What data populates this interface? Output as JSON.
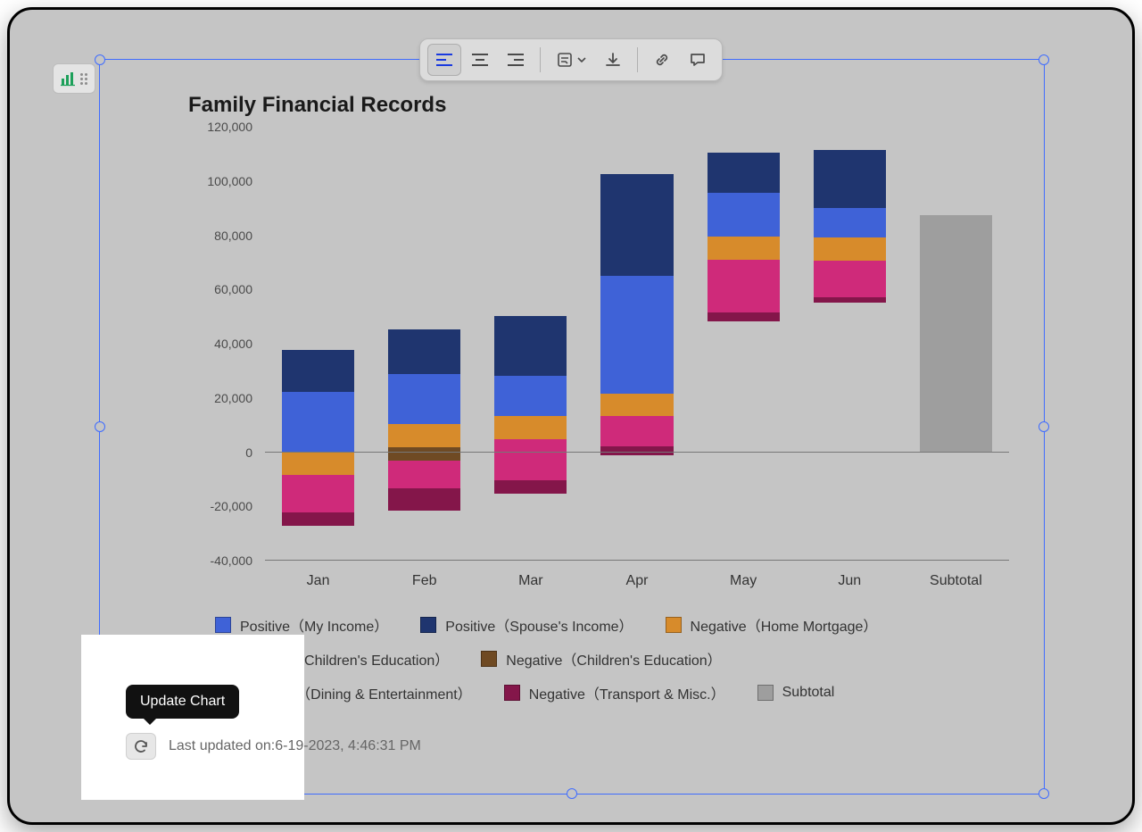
{
  "toolbar": {
    "items": [
      {
        "name": "align-left",
        "active": true
      },
      {
        "name": "align-center",
        "active": false
      },
      {
        "name": "align-right",
        "active": false
      },
      {
        "name": "wrap-settings",
        "active": false,
        "dropdown": true
      },
      {
        "name": "download",
        "active": false
      },
      {
        "name": "link",
        "active": false
      },
      {
        "name": "comment",
        "active": false
      }
    ]
  },
  "tooltip": {
    "label": "Update Chart"
  },
  "footer": {
    "prefix": "Last updated on:",
    "timestamp": "6-19-2023, 4:46:31 PM"
  },
  "chart": {
    "type": "stacked-bar-waterfall",
    "title": "Family Financial Records",
    "title_fontsize": 24,
    "title_color": "#1a1a1a",
    "background_color": "#c5c5c5",
    "axis_color": "#777777",
    "label_fontsize": 16,
    "label_color": "#333333",
    "ytick_fontsize": 14,
    "ytick_color": "#4a4a4a",
    "ylim": [
      -40000,
      120000
    ],
    "ytick_step": 20000,
    "ytick_labels": [
      "-40,000",
      "-20,000",
      "0",
      "20,000",
      "40,000",
      "60,000",
      "80,000",
      "100,000",
      "120,000"
    ],
    "bar_width": 0.68,
    "categories": [
      "Jan",
      "Feb",
      "Mar",
      "Apr",
      "May",
      "Jun",
      "Subtotal"
    ],
    "series": [
      {
        "key": "my_income",
        "label": "Positive（My Income）",
        "color": "#3f62d7",
        "sign": "positive"
      },
      {
        "key": "spouse_income",
        "label": "Positive（Spouse's Income）",
        "color": "#1f356f",
        "sign": "positive"
      },
      {
        "key": "home_mortgage",
        "label": "Negative（Home Mortgage）",
        "color": "#d78b2b",
        "sign": "negative"
      },
      {
        "key": "children_education_pos",
        "label": "Positive（Children's Education）",
        "color": "#1fa38f",
        "sign": "positive"
      },
      {
        "key": "children_education_neg",
        "label": "Negative（Children's Education）",
        "color": "#6f4a23",
        "sign": "negative"
      },
      {
        "key": "dining_entertainment",
        "label": "Negative（Dining & Entertainment）",
        "color": "#cf2a7a",
        "sign": "negative"
      },
      {
        "key": "transport_misc",
        "label": "Negative（Transport & Misc.）",
        "color": "#84164a",
        "sign": "negative"
      },
      {
        "key": "subtotal",
        "label": "Subtotal",
        "color": "#9e9e9e",
        "sign": "positive"
      }
    ],
    "data": {
      "Jan": {
        "base": 0,
        "my_income": 22000,
        "spouse_income": 15500,
        "home_mortgage": 8500,
        "children_education_pos": 0,
        "children_education_neg": 0,
        "dining_entertainment": 14000,
        "transport_misc": 5000
      },
      "Feb": {
        "base": 10000,
        "my_income": 18500,
        "spouse_income": 16500,
        "home_mortgage": 8500,
        "children_education_pos": 0,
        "children_education_neg": 5000,
        "dining_entertainment": 10000,
        "transport_misc": 8500
      },
      "Mar": {
        "base": 13000,
        "my_income": 15000,
        "spouse_income": 22000,
        "home_mortgage": 8500,
        "children_education_pos": 0,
        "children_education_neg": 0,
        "dining_entertainment": 15000,
        "transport_misc": 5000
      },
      "Apr": {
        "base": 21500,
        "my_income": 43500,
        "spouse_income": 37500,
        "home_mortgage": 8500,
        "children_education_pos": 0,
        "children_education_neg": 0,
        "dining_entertainment": 11000,
        "transport_misc": 3500
      },
      "May": {
        "base": 79500,
        "my_income": 16000,
        "spouse_income": 15000,
        "home_mortgage": 8500,
        "children_education_pos": 0,
        "children_education_neg": 0,
        "dining_entertainment": 19500,
        "transport_misc": 3500
      },
      "Jun": {
        "base": 79000,
        "my_income": 11000,
        "spouse_income": 21500,
        "home_mortgage": 8500,
        "children_education_pos": 0,
        "children_education_neg": 0,
        "dining_entertainment": 13500,
        "transport_misc": 2000
      },
      "Subtotal": {
        "base": 0,
        "subtotal": 87500
      }
    }
  },
  "selection": {
    "border_color": "#3f6cff"
  }
}
